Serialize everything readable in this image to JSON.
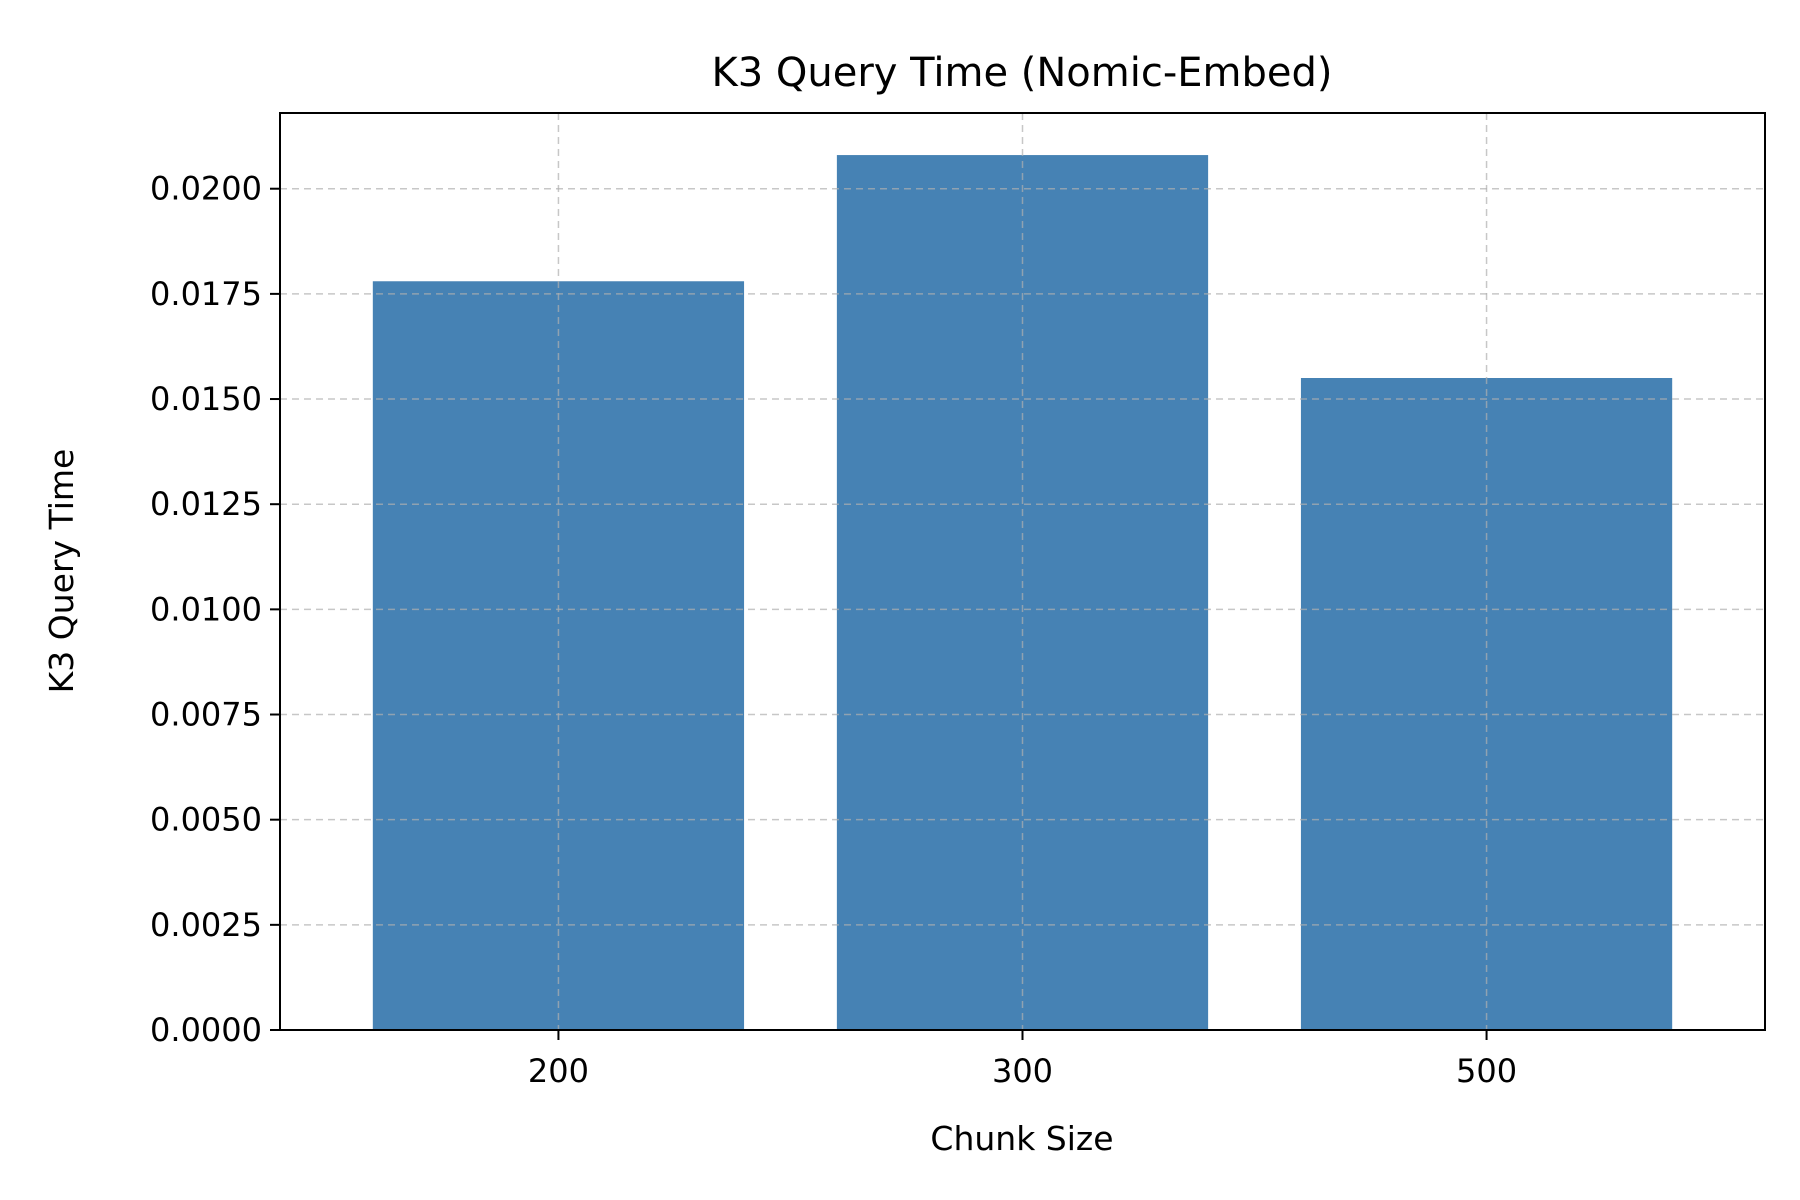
{
  "chart_data": {
    "type": "bar",
    "title": "K3 Query Time (Nomic-Embed)",
    "xlabel": "Chunk Size",
    "ylabel": "K3 Query Time",
    "categories": [
      "200",
      "300",
      "500"
    ],
    "values": [
      0.0178,
      0.0208,
      0.0155
    ],
    "ylim": [
      0,
      0.0218
    ],
    "yticks": [
      "0.0000",
      "0.0025",
      "0.0050",
      "0.0075",
      "0.0100",
      "0.0125",
      "0.0150",
      "0.0175",
      "0.0200"
    ],
    "grid": true,
    "bar_color": "#4682b4"
  }
}
